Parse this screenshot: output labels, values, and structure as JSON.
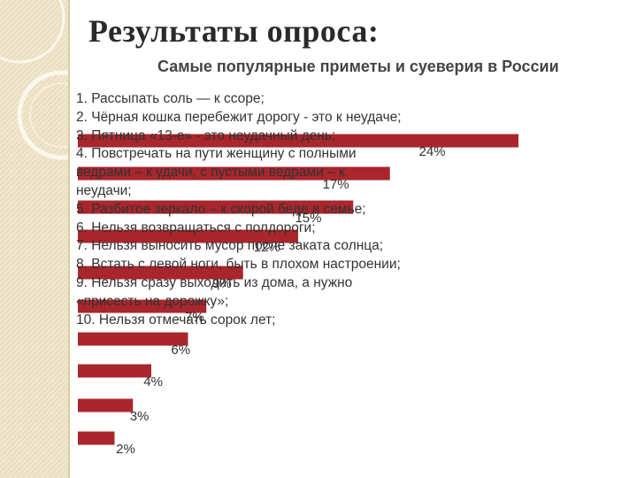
{
  "heading": "Результаты опроса:",
  "chart_data": {
    "type": "bar",
    "title": "Самые популярные приметы и суеверия в России",
    "categories": [
      "1. Рассыпать соль — к ссоре;",
      "2. Чёрная кошка перебежит дорогу - это к неудаче;",
      "3. Пятница «13-е» - это неудачный день;",
      "4. Повстречать на пути женщину с полными ведрами – к удачи, с пустыми ведрами – к неудачи;",
      "5. Разбитое зеркало – к скорой беде в семье;",
      "6. Нельзя возвращаться с полдороги;",
      "7. Нельзя выносить мусор после заката солнца;",
      "8. Встать с левой ноги, быть в плохом настроении;",
      "9. Нельзя сразу выходить из дома, а нужно «присесть на дорожку»;",
      "10. Нельзя отмечать сорок лет;"
    ],
    "values": [
      24,
      17,
      15,
      12,
      9,
      7,
      6,
      4,
      3,
      2
    ],
    "value_labels": [
      "24%",
      "17%",
      "15%",
      "12%",
      "9%",
      "7%",
      "6%",
      "4%",
      "3%",
      "2%"
    ],
    "color": "#a8262c"
  }
}
